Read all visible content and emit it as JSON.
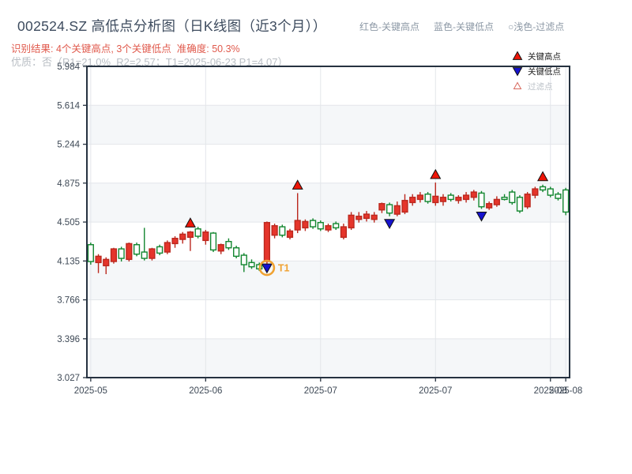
{
  "page": {
    "title": "002524.SZ 高低点分析图（日K线图（近3个月））",
    "legend_top": {
      "high": "红色-关键高点",
      "low": "蓝色-关键低点",
      "filtered": "○浅色-过滤点"
    },
    "result_line": "识别结果: 4个关键高点, 3个关键低点  准确度: 50.3%",
    "quality_line": "优质：否（R1=21.0%  R2=2.57；T1=2025-06-23 P1=4.07）"
  },
  "chart_data": {
    "type": "candlestick",
    "ohlc_order": "open,high,low,close",
    "ylim": [
      3.027,
      5.984
    ],
    "yticks": [
      5.984,
      5.614,
      5.244,
      4.875,
      4.505,
      4.135,
      3.766,
      3.396,
      3.027
    ],
    "xtick_indices": [
      0,
      15,
      30,
      45,
      60,
      62
    ],
    "xtick_labels": [
      "2025-05",
      "2025-06",
      "2025-07",
      "2025-07",
      "2025-08",
      "2025-08"
    ],
    "grid": true,
    "candles": [
      [
        4.29,
        4.31,
        4.1,
        4.13
      ],
      [
        4.12,
        4.2,
        4.02,
        4.18
      ],
      [
        4.09,
        4.17,
        4.01,
        4.15
      ],
      [
        4.13,
        4.26,
        4.11,
        4.25
      ],
      [
        4.25,
        4.27,
        4.13,
        4.16
      ],
      [
        4.15,
        4.31,
        4.13,
        4.3
      ],
      [
        4.29,
        4.31,
        4.18,
        4.2
      ],
      [
        4.22,
        4.45,
        4.14,
        4.16
      ],
      [
        4.16,
        4.26,
        4.14,
        4.25
      ],
      [
        4.27,
        4.29,
        4.19,
        4.21
      ],
      [
        4.22,
        4.33,
        4.2,
        4.31
      ],
      [
        4.3,
        4.37,
        4.26,
        4.35
      ],
      [
        4.34,
        4.41,
        4.3,
        4.39
      ],
      [
        4.36,
        4.42,
        4.23,
        4.41
      ],
      [
        4.44,
        4.46,
        4.35,
        4.37
      ],
      [
        4.33,
        4.43,
        4.29,
        4.41
      ],
      [
        4.4,
        4.41,
        4.22,
        4.24
      ],
      [
        4.23,
        4.3,
        4.2,
        4.29
      ],
      [
        4.32,
        4.35,
        4.24,
        4.26
      ],
      [
        4.26,
        4.28,
        4.16,
        4.18
      ],
      [
        4.19,
        4.21,
        4.03,
        4.1
      ],
      [
        4.12,
        4.15,
        4.06,
        4.08
      ],
      [
        4.1,
        4.12,
        4.04,
        4.06
      ],
      [
        4.13,
        4.51,
        4.07,
        4.5
      ],
      [
        4.38,
        4.49,
        4.35,
        4.47
      ],
      [
        4.46,
        4.48,
        4.36,
        4.38
      ],
      [
        4.36,
        4.44,
        4.34,
        4.42
      ],
      [
        4.43,
        4.78,
        4.4,
        4.52
      ],
      [
        4.45,
        4.53,
        4.42,
        4.51
      ],
      [
        4.52,
        4.54,
        4.44,
        4.46
      ],
      [
        4.5,
        4.52,
        4.42,
        4.44
      ],
      [
        4.43,
        4.49,
        4.41,
        4.47
      ],
      [
        4.49,
        4.51,
        4.43,
        4.45
      ],
      [
        4.36,
        4.49,
        4.34,
        4.46
      ],
      [
        4.45,
        4.6,
        4.43,
        4.57
      ],
      [
        4.53,
        4.6,
        4.5,
        4.56
      ],
      [
        4.54,
        4.61,
        4.51,
        4.58
      ],
      [
        4.53,
        4.6,
        4.5,
        4.57
      ],
      [
        4.62,
        4.69,
        4.59,
        4.68
      ],
      [
        4.67,
        4.69,
        4.56,
        4.59
      ],
      [
        4.58,
        4.7,
        4.56,
        4.66
      ],
      [
        4.6,
        4.77,
        4.58,
        4.71
      ],
      [
        4.69,
        4.77,
        4.66,
        4.74
      ],
      [
        4.72,
        4.79,
        4.69,
        4.76
      ],
      [
        4.77,
        4.79,
        4.68,
        4.7
      ],
      [
        4.69,
        4.88,
        4.66,
        4.75
      ],
      [
        4.7,
        4.77,
        4.66,
        4.74
      ],
      [
        4.76,
        4.78,
        4.7,
        4.72
      ],
      [
        4.71,
        4.76,
        4.68,
        4.74
      ],
      [
        4.72,
        4.79,
        4.69,
        4.76
      ],
      [
        4.74,
        4.81,
        4.71,
        4.79
      ],
      [
        4.78,
        4.8,
        4.63,
        4.65
      ],
      [
        4.64,
        4.7,
        4.62,
        4.68
      ],
      [
        4.67,
        4.75,
        4.65,
        4.72
      ],
      [
        4.74,
        4.77,
        4.71,
        4.72
      ],
      [
        4.79,
        4.81,
        4.67,
        4.69
      ],
      [
        4.74,
        4.76,
        4.59,
        4.61
      ],
      [
        4.65,
        4.79,
        4.63,
        4.77
      ],
      [
        4.76,
        4.84,
        4.73,
        4.82
      ],
      [
        4.84,
        4.86,
        4.79,
        4.81
      ],
      [
        4.82,
        4.84,
        4.74,
        4.76
      ],
      [
        4.77,
        4.79,
        4.71,
        4.73
      ],
      [
        4.81,
        4.83,
        4.57,
        4.6
      ]
    ],
    "markers": {
      "key_high_indices": [
        13,
        27,
        45,
        59
      ],
      "key_low_indices": [
        23,
        39,
        51
      ],
      "t1": {
        "index": 23,
        "price": 4.07,
        "label": "T1"
      }
    },
    "legend": {
      "items": [
        {
          "label": "关键高点",
          "type": "key-high"
        },
        {
          "label": "关键低点",
          "type": "key-low"
        },
        {
          "label": "过滤点",
          "type": "filtered"
        }
      ]
    },
    "colors": {
      "up_fill": "#e5352b",
      "up_edge": "#bb281e",
      "down": "#12862f",
      "down_fill": "#ffffff",
      "grid": "#e3e6ea",
      "band": "#f5f7f9",
      "spine": "#263240",
      "tick_label": "#3e4956",
      "key_high": "#ee1507",
      "key_low": "#1512cf",
      "marker_edge": "#111111",
      "filtered_edge": "#d8695e",
      "t1_ring": "#f0a232",
      "legend_text": "#222222",
      "legend_muted": "#bcc2c8"
    }
  }
}
